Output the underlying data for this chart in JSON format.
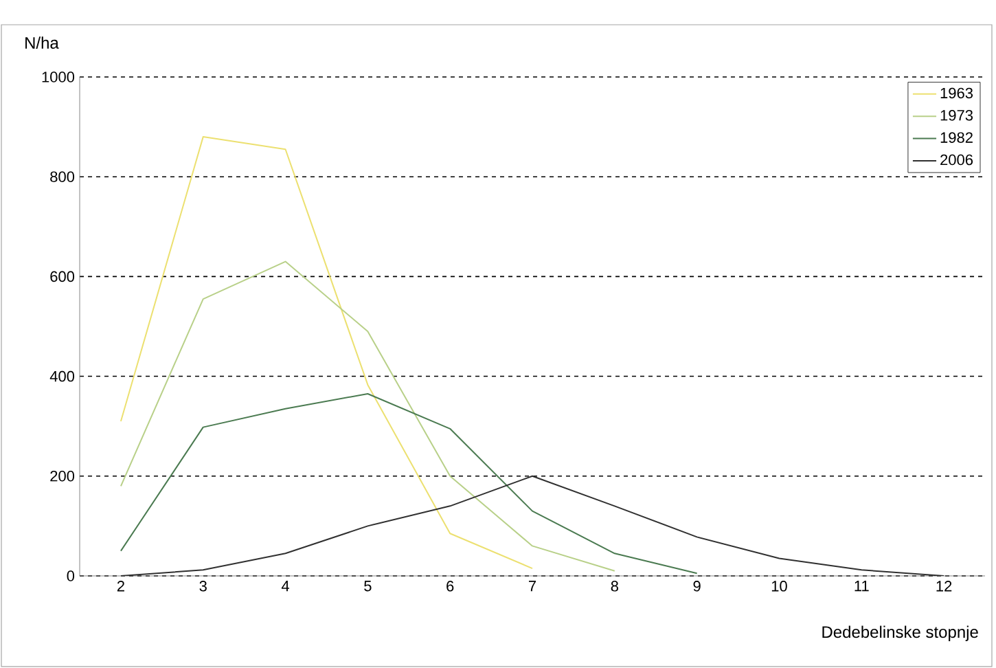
{
  "chart_data": {
    "type": "line",
    "xlabel": "Dedebelinske stopnje",
    "ylabel": "N/ha",
    "categories": [
      "2",
      "3",
      "4",
      "5",
      "6",
      "7",
      "8",
      "9",
      "10",
      "11",
      "12"
    ],
    "series": [
      {
        "name": "1963",
        "color": "#ece070",
        "values": [
          310,
          880,
          855,
          383,
          85,
          15,
          null,
          null,
          null,
          null,
          null
        ]
      },
      {
        "name": "1973",
        "color": "#b8d088",
        "values": [
          180,
          555,
          630,
          490,
          200,
          60,
          10,
          null,
          null,
          null,
          null
        ]
      },
      {
        "name": "1982",
        "color": "#4a7a50",
        "values": [
          50,
          298,
          335,
          365,
          295,
          130,
          45,
          5,
          null,
          null,
          null
        ]
      },
      {
        "name": "2006",
        "color": "#303030",
        "values": [
          0,
          12,
          45,
          100,
          140,
          200,
          140,
          78,
          35,
          12,
          0
        ]
      }
    ],
    "ylim": [
      0,
      1000
    ],
    "yticks": [
      0,
      200,
      400,
      600,
      800,
      1000
    ],
    "grid": "y",
    "legend": "top right",
    "line_style": "solid",
    "marker": "none"
  }
}
